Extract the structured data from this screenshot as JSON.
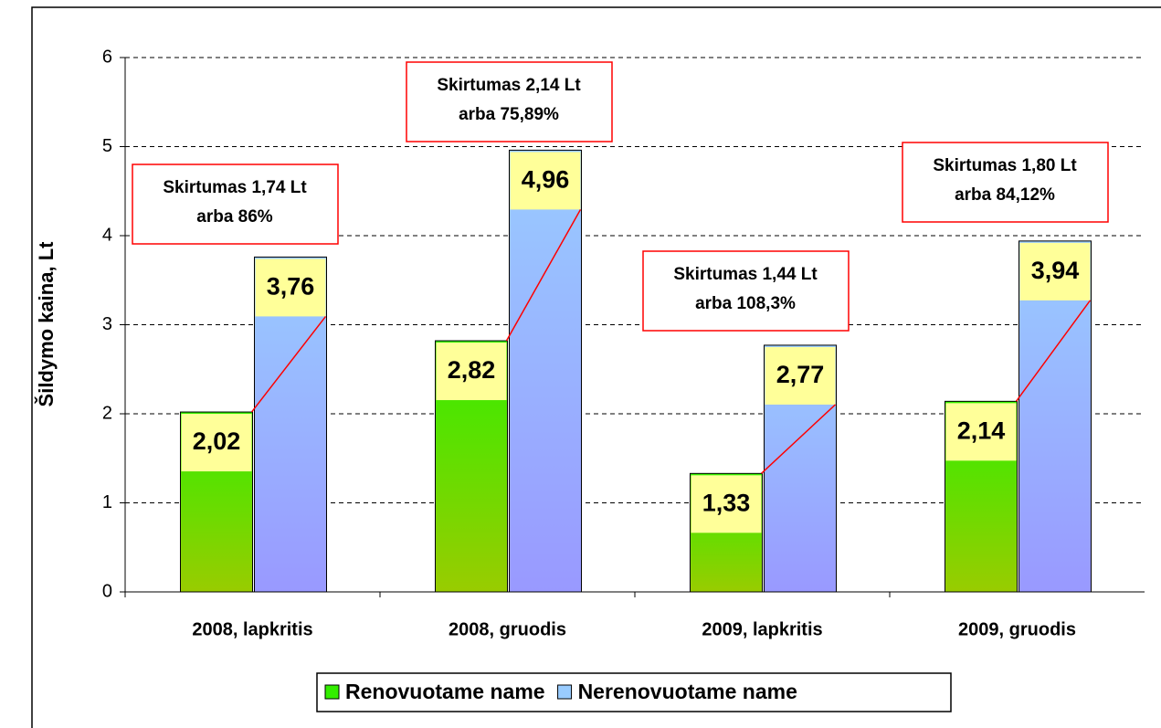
{
  "chart_data": {
    "type": "bar",
    "y_label": "Šildymo kaina, Lt",
    "categories": [
      "2008, lapkritis",
      "2008, gruodis",
      "2009, lapkritis",
      "2009, gruodis"
    ],
    "series": [
      {
        "name": "Renovuotame name",
        "color": "#33ee00",
        "values": [
          2.02,
          2.82,
          1.33,
          2.14
        ],
        "value_labels": [
          "2,02",
          "2,82",
          "1,33",
          "2,14"
        ]
      },
      {
        "name": "Nerenovuotame name",
        "color": "#99ccff",
        "values": [
          3.76,
          4.96,
          2.77,
          3.94
        ],
        "value_labels": [
          "3,76",
          "4,96",
          "2,77",
          "3,94"
        ]
      }
    ],
    "ylim": [
      0,
      6
    ],
    "yticks": [
      0,
      1,
      2,
      3,
      4,
      5,
      6
    ],
    "grid": true,
    "legend": "bottom",
    "annotations": [
      [
        "Skirtumas 1,74 Lt",
        "arba 86%"
      ],
      [
        "Skirtumas 2,14 Lt",
        "arba 75,89%"
      ],
      [
        "Skirtumas 1,44 Lt",
        "arba 108,3%"
      ],
      [
        "Skirtumas 1,80 Lt",
        "arba 84,12%"
      ]
    ]
  }
}
